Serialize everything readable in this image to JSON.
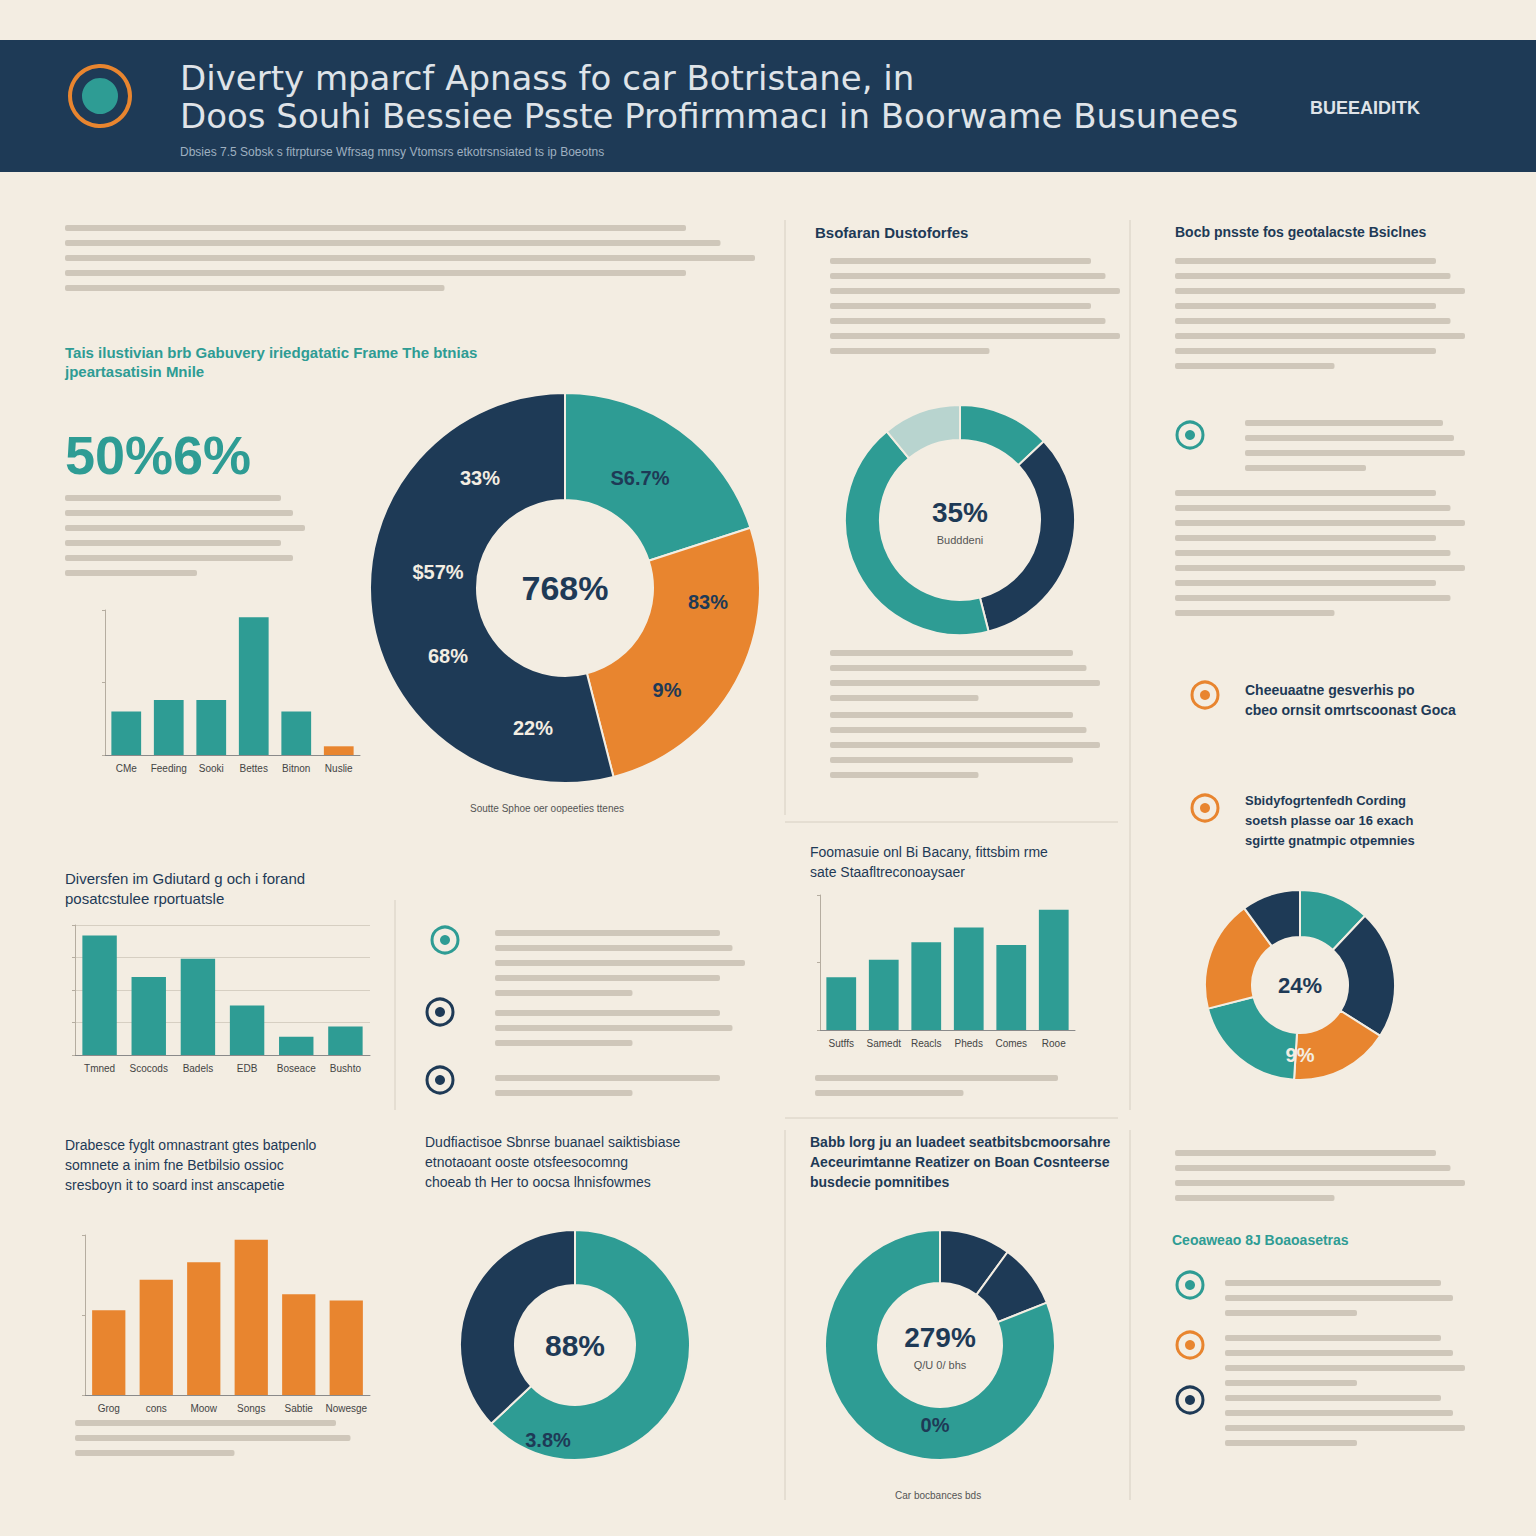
{
  "header": {
    "title": [
      "Diverty mparcf Apnass fo car Botristane, in",
      "Doos Souhi Bessiee Psste Profirmmacı in Boorwame Busunees"
    ],
    "subtitle": "Dbsies 7.5 Sobsk s fitrpturse Wfrsag mnsy Vtomsrs etkotrsnsiated ts ip Boeotns",
    "brand": "BUEEAIDITK"
  },
  "big_stat": "50%6%",
  "headings": [
    "Tais ilustivian brb Gabuvery iriedgatatic Frame The btnias",
    "jpeartasatisin Mnile",
    "Bsofaran Dustoforfes",
    "Bocb pnsste fos geotalacste Bsiclnes",
    "Cheeuaatne gesverhis po",
    "cbeo ornsit omrtscoonast Goca",
    "Sbidyfogrtenfedh Cording",
    "soetsh plasse oar 16 exach",
    "sgirtte gnatmpic otpemnies",
    "Diversfen im Gdiutard g och i forand",
    "posatcstulee rportuatsle",
    "Foomasuie onl Bi Bacany, fittsbim rme",
    "sate Staafltreconoaysaer",
    "Drabesce fyglt omnastrant gtes batpenlo",
    "somnete a inim fne Betbilsio ossioc",
    "sresboyn it to soard inst anscapetie",
    "Dudfiactisoe Sbnrse buanael saiktisbiase",
    "etnotaoant ooste otsfeesocomng",
    "choeab th Her to oocsa lhnisfowmes",
    "Babb lorg ju an luadeet seatbitsbcmoorsahre",
    "Aeceurimtanne Reatizer on Boan Cosnteerse",
    "busdecie pomnitibes",
    "Ceoaweao 8J Boaoasetras",
    "Soutte Sphoe oer oopeeties ttenes",
    "Car bocbances bds"
  ],
  "chart_data": [
    {
      "type": "bar",
      "categories": [
        "CMe",
        "Feeding",
        "Sooki",
        "Bettes",
        "Bitnon",
        "Nuslie"
      ],
      "values": [
        30,
        38,
        38,
        95,
        30,
        6
      ],
      "colors": [
        "#2e9c94",
        "#2e9c94",
        "#2e9c94",
        "#2e9c94",
        "#2e9c94",
        "#e8852f"
      ],
      "ylim": [
        0,
        100
      ],
      "yticks": [
        0,
        50,
        100
      ],
      "grid": false,
      "tick_labels": "x"
    },
    {
      "type": "pie",
      "values": [
        20,
        26,
        54
      ],
      "colors": [
        "#2e9c94",
        "#e8852f",
        "#1e3a56"
      ],
      "center_label": "768%",
      "annotations": [
        "33%",
        "S6.7%",
        "$57%",
        "83%",
        "68%",
        "9%",
        "22%"
      ]
    },
    {
      "type": "pie",
      "values": [
        13,
        33,
        43,
        11
      ],
      "colors": [
        "#2e9c94",
        "#1e3a56",
        "#2e9c94",
        "#b8d4cf"
      ],
      "center_label": "35%",
      "center_sublabel": "Budddeni"
    },
    {
      "type": "pie",
      "values": [
        12,
        22,
        17,
        20,
        19,
        10
      ],
      "colors": [
        "#2e9c94",
        "#1e3a56",
        "#e8852f",
        "#2e9c94",
        "#e8852f",
        "#1e3a56"
      ],
      "center_label": "24%",
      "annotations": [
        "9%"
      ]
    },
    {
      "type": "bar",
      "categories": [
        "Tmned",
        "Scocods",
        "Badels",
        "EDB",
        "Boseace",
        "Bushto"
      ],
      "values": [
        92,
        60,
        74,
        38,
        14,
        22
      ],
      "color": "#2e9c94",
      "ylim": [
        0,
        100
      ],
      "yticks": [
        0,
        25,
        50,
        75,
        100
      ],
      "grid": true,
      "tick_labels": "x"
    },
    {
      "type": "bar",
      "categories": [
        "Sutffs",
        "Samedt",
        "Reacls",
        "Pheds",
        "Comes",
        "Rooe"
      ],
      "values": [
        39,
        52,
        65,
        76,
        63,
        89
      ],
      "color": "#2e9c94",
      "ylim": [
        0,
        100
      ],
      "yticks": [
        0,
        50,
        100
      ],
      "grid": false,
      "tick_labels": "x"
    },
    {
      "type": "bar",
      "categories": [
        "Grog",
        "cons",
        "Moow",
        "Songs",
        "Sabtie",
        "Nowesge"
      ],
      "values": [
        53,
        72,
        83,
        97,
        63,
        59
      ],
      "color": "#e8852f",
      "ylim": [
        0,
        100
      ],
      "yticks": [
        0,
        50,
        100
      ],
      "grid": false,
      "tick_labels": "x"
    },
    {
      "type": "pie",
      "values": [
        63,
        37
      ],
      "colors": [
        "#2e9c94",
        "#1e3a56"
      ],
      "center_label": "88%",
      "annotations": [
        "3.8%"
      ]
    },
    {
      "type": "pie",
      "values": [
        10,
        9,
        81
      ],
      "colors": [
        "#1e3a56",
        "#1e3a56",
        "#2e9c94"
      ],
      "center_label": "279%",
      "center_sublabel": "Q/U 0/ bhs",
      "annotations": [
        "0%"
      ]
    }
  ]
}
